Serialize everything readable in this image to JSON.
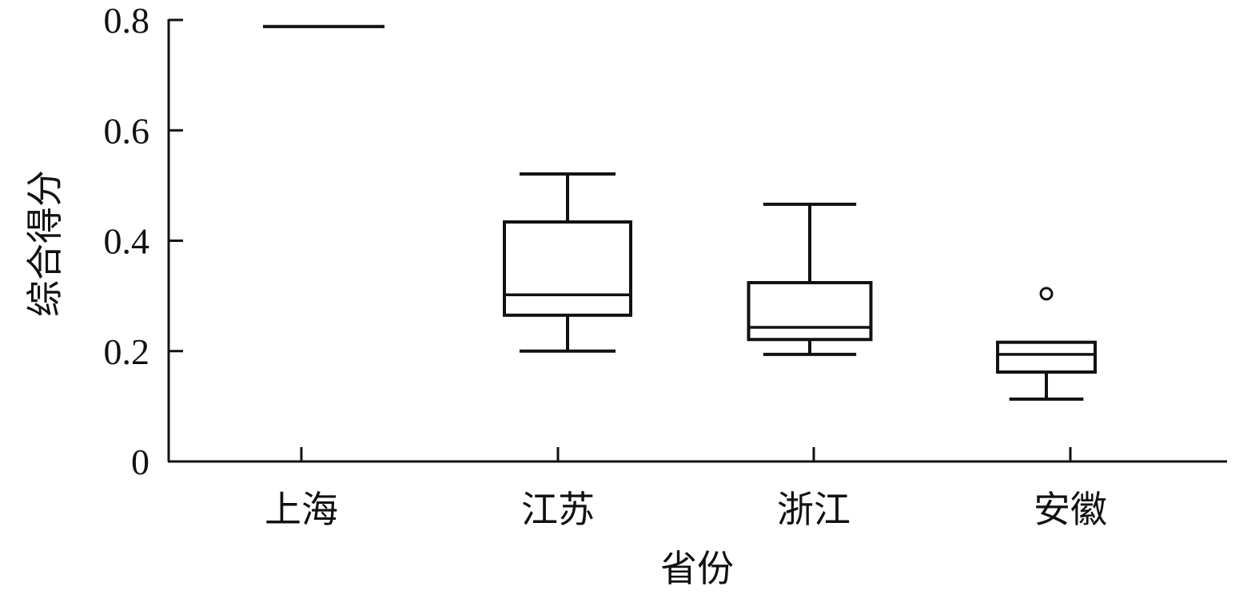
{
  "chart_data": {
    "type": "box",
    "title": "",
    "xlabel": "省份",
    "ylabel": "综合得分",
    "ylim": [
      0,
      0.8
    ],
    "yticks": [
      0,
      0.2,
      0.4,
      0.6,
      0.8
    ],
    "ytick_labels": [
      "0",
      "0.2",
      "0.4",
      "0.6",
      "0.8"
    ],
    "categories": [
      "上海",
      "江苏",
      "浙江",
      "安徽"
    ],
    "boxes": [
      {
        "category": "上海",
        "min": 0.788,
        "q1": 0.788,
        "median": 0.788,
        "q3": 0.788,
        "max": 0.788,
        "outliers": []
      },
      {
        "category": "江苏",
        "min": 0.2,
        "q1": 0.265,
        "median": 0.302,
        "q3": 0.434,
        "max": 0.521,
        "outliers": []
      },
      {
        "category": "浙江",
        "min": 0.194,
        "q1": 0.221,
        "median": 0.243,
        "q3": 0.324,
        "max": 0.466,
        "outliers": []
      },
      {
        "category": "安徽",
        "min": 0.113,
        "q1": 0.162,
        "median": 0.194,
        "q3": 0.216,
        "max": 0.216,
        "outliers": [
          0.304
        ]
      }
    ],
    "grid": false,
    "colors": {
      "stroke": "#111111",
      "background": "#ffffff"
    }
  }
}
